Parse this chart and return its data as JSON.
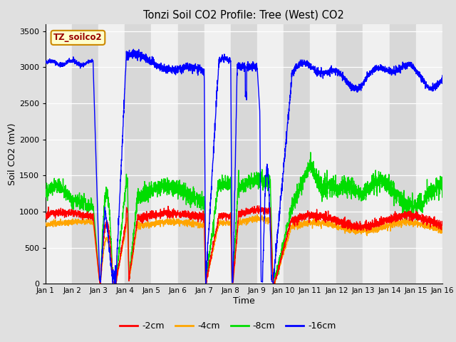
{
  "title": "Tonzi Soil CO2 Profile: Tree (West) CO2",
  "xlabel": "Time",
  "ylabel": "Soil CO2 (mV)",
  "ylim": [
    0,
    3600
  ],
  "xlim": [
    0,
    15
  ],
  "xtick_labels": [
    "Jan 1",
    "Jan 2",
    "Jan 3",
    "Jan 4",
    "Jan 5",
    "Jan 6",
    "Jan 7",
    "Jan 8",
    "Jan 9",
    "Jan 10",
    "Jan 11",
    "Jan 12",
    "Jan 13",
    "Jan 14",
    "Jan 15",
    "Jan 16"
  ],
  "ytick_vals": [
    0,
    500,
    1000,
    1500,
    2000,
    2500,
    3000,
    3500
  ],
  "fig_bg_color": "#e0e0e0",
  "plot_bg_color": "#e8e8e8",
  "band_color_light": "#f0f0f0",
  "band_color_dark": "#d8d8d8",
  "legend_label": "TZ_soilco2",
  "legend_box_facecolor": "#ffffcc",
  "legend_box_edgecolor": "#cc8800",
  "colors": {
    "-2cm": "#ff0000",
    "-4cm": "#ffa500",
    "-8cm": "#00dd00",
    "-16cm": "#0000ff"
  },
  "line_width": 1.0
}
